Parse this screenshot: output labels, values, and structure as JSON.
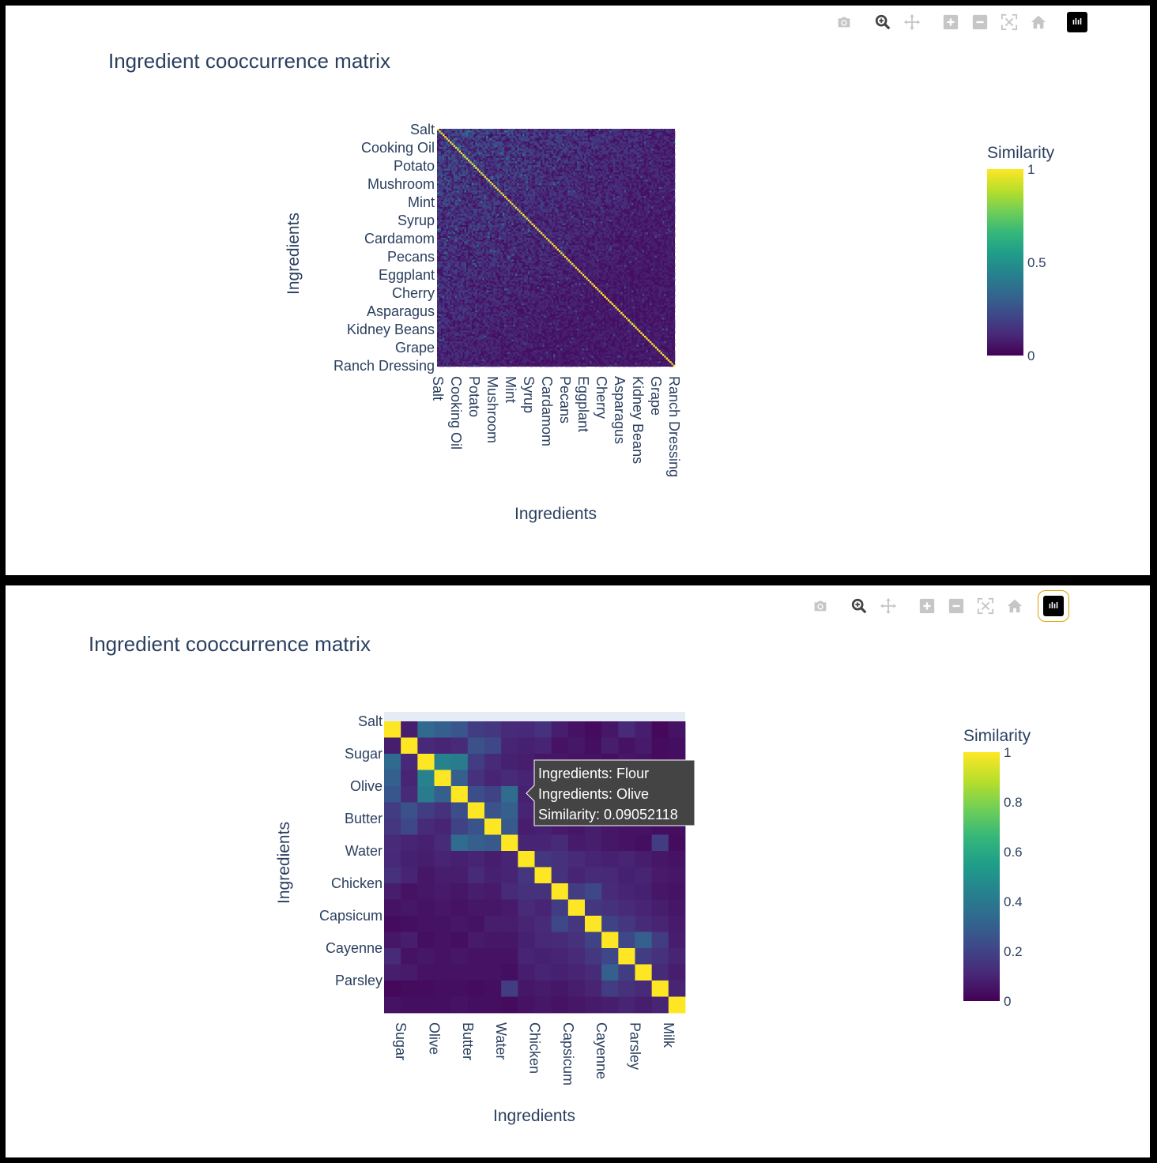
{
  "colors": {
    "viridis": [
      "#440154",
      "#482878",
      "#3e4989",
      "#31688e",
      "#26828e",
      "#1f9e89",
      "#35b779",
      "#6ece58",
      "#b5de2b",
      "#fde725"
    ]
  },
  "modebar_icons": [
    "camera-icon",
    "zoom-icon",
    "pan-icon",
    "zoom-in-icon",
    "zoom-out-icon",
    "autoscale-icon",
    "home-icon",
    "plotly-logo-icon"
  ],
  "chart_data": [
    {
      "type": "heatmap",
      "title": "Ingredient cooccurrence matrix",
      "xlabel": "Ingredients",
      "ylabel": "Ingredients",
      "colorbar": {
        "title": "Similarity",
        "tickvals": [
          0,
          0.5,
          1
        ],
        "ticktext": [
          "0",
          "0.5",
          "1"
        ],
        "range": [
          0,
          1
        ]
      },
      "n": 131,
      "tick_labels": [
        "Salt",
        "Cooking Oil",
        "Potato",
        "Mushroom",
        "Mint",
        "Syrup",
        "Cardamom",
        "Pecans",
        "Eggplant",
        "Cherry",
        "Asparagus",
        "Kidney Beans",
        "Grape",
        "Ranch Dressing"
      ],
      "diagonal_value": 1,
      "off_diagonal_range": [
        0,
        0.25
      ]
    },
    {
      "type": "heatmap",
      "title": "Ingredient cooccurrence matrix",
      "xlabel": "Ingredients",
      "ylabel": "Ingredients",
      "colorbar": {
        "title": "Similarity",
        "tickvals": [
          0,
          0.2,
          0.4,
          0.6,
          0.8,
          1
        ],
        "ticktext": [
          "0",
          "0.2",
          "0.4",
          "0.6",
          "0.8",
          "1"
        ],
        "range": [
          0,
          1
        ]
      },
      "y_tick_labels": [
        "Salt",
        "Sugar",
        "Olive",
        "Butter",
        "Water",
        "Chicken",
        "Capsicum",
        "Cayenne",
        "Parsley"
      ],
      "x_tick_labels": [
        "Sugar",
        "Olive",
        "Butter",
        "Water",
        "Chicken",
        "Capsicum",
        "Cayenne",
        "Parsley",
        "Milk"
      ],
      "n": 18,
      "diagonal_value": 1,
      "matrix": [
        [
          1.0,
          0.08,
          0.34,
          0.3,
          0.27,
          0.18,
          0.16,
          0.12,
          0.11,
          0.14,
          0.08,
          0.05,
          0.03,
          0.06,
          0.12,
          0.08,
          0.02,
          0.05
        ],
        [
          0.08,
          1.0,
          0.11,
          0.1,
          0.12,
          0.25,
          0.22,
          0.1,
          0.09,
          0.1,
          0.05,
          0.06,
          0.04,
          0.08,
          0.05,
          0.07,
          0.03,
          0.04
        ],
        [
          0.34,
          0.11,
          1.0,
          0.45,
          0.42,
          0.18,
          0.12,
          0.09,
          0.08,
          0.06,
          0.06,
          0.05,
          0.05,
          0.04,
          0.06,
          0.05,
          0.03,
          0.04
        ],
        [
          0.3,
          0.1,
          0.45,
          1.0,
          0.3,
          0.14,
          0.1,
          0.12,
          0.1,
          0.08,
          0.07,
          0.06,
          0.05,
          0.05,
          0.05,
          0.05,
          0.04,
          0.04
        ],
        [
          0.27,
          0.12,
          0.42,
          0.3,
          1.0,
          0.24,
          0.2,
          0.35,
          0.09,
          0.08,
          0.06,
          0.05,
          0.06,
          0.04,
          0.06,
          0.05,
          0.04,
          0.05
        ],
        [
          0.18,
          0.25,
          0.18,
          0.14,
          0.24,
          1.0,
          0.26,
          0.3,
          0.1,
          0.12,
          0.08,
          0.06,
          0.05,
          0.07,
          0.05,
          0.05,
          0.03,
          0.04
        ],
        [
          0.16,
          0.22,
          0.12,
          0.1,
          0.2,
          0.26,
          1.0,
          0.28,
          0.08,
          0.09,
          0.07,
          0.06,
          0.08,
          0.06,
          0.05,
          0.05,
          0.04,
          0.04
        ],
        [
          0.12,
          0.1,
          0.09,
          0.12,
          0.35,
          0.3,
          0.28,
          1.0,
          0.1,
          0.1,
          0.12,
          0.07,
          0.08,
          0.06,
          0.05,
          0.04,
          0.18,
          0.03
        ],
        [
          0.11,
          0.09,
          0.08,
          0.1,
          0.09,
          0.1,
          0.08,
          0.1,
          1.0,
          0.16,
          0.14,
          0.12,
          0.1,
          0.09,
          0.1,
          0.08,
          0.06,
          0.05
        ],
        [
          0.14,
          0.1,
          0.06,
          0.08,
          0.08,
          0.12,
          0.09,
          0.1,
          0.16,
          1.0,
          0.14,
          0.1,
          0.12,
          0.11,
          0.09,
          0.1,
          0.07,
          0.06
        ],
        [
          0.08,
          0.05,
          0.06,
          0.07,
          0.06,
          0.08,
          0.07,
          0.12,
          0.14,
          0.14,
          1.0,
          0.18,
          0.22,
          0.12,
          0.1,
          0.09,
          0.06,
          0.05
        ],
        [
          0.05,
          0.06,
          0.05,
          0.06,
          0.05,
          0.06,
          0.06,
          0.07,
          0.12,
          0.1,
          0.18,
          1.0,
          0.16,
          0.14,
          0.12,
          0.1,
          0.08,
          0.06
        ],
        [
          0.03,
          0.04,
          0.05,
          0.05,
          0.06,
          0.05,
          0.08,
          0.08,
          0.1,
          0.12,
          0.22,
          0.16,
          1.0,
          0.2,
          0.16,
          0.12,
          0.1,
          0.07
        ],
        [
          0.06,
          0.08,
          0.04,
          0.05,
          0.04,
          0.07,
          0.06,
          0.06,
          0.09,
          0.11,
          0.12,
          0.14,
          0.2,
          1.0,
          0.22,
          0.3,
          0.18,
          0.08
        ],
        [
          0.12,
          0.05,
          0.06,
          0.05,
          0.06,
          0.05,
          0.05,
          0.05,
          0.1,
          0.09,
          0.1,
          0.12,
          0.16,
          0.22,
          1.0,
          0.18,
          0.14,
          0.1
        ],
        [
          0.08,
          0.07,
          0.05,
          0.05,
          0.05,
          0.05,
          0.05,
          0.04,
          0.08,
          0.1,
          0.09,
          0.1,
          0.12,
          0.3,
          0.18,
          1.0,
          0.12,
          0.08
        ],
        [
          0.02,
          0.03,
          0.03,
          0.04,
          0.04,
          0.03,
          0.04,
          0.18,
          0.06,
          0.07,
          0.06,
          0.08,
          0.1,
          0.18,
          0.14,
          0.12,
          1.0,
          0.1
        ],
        [
          0.05,
          0.04,
          0.04,
          0.04,
          0.05,
          0.04,
          0.04,
          0.03,
          0.05,
          0.06,
          0.05,
          0.06,
          0.07,
          0.08,
          0.1,
          0.08,
          0.1,
          1.0
        ]
      ],
      "hover": {
        "lines": [
          "Ingredients: Flour",
          "Ingredients: Olive",
          "Similarity: 0.09052118"
        ]
      }
    }
  ]
}
